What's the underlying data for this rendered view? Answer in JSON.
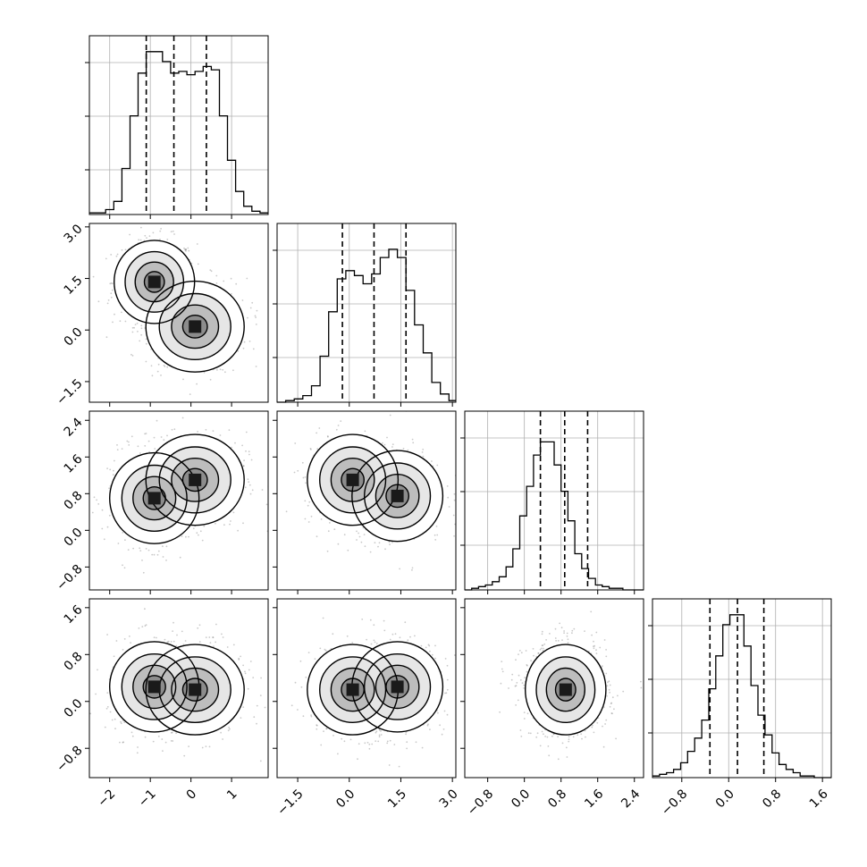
{
  "chart_data": {
    "type": "corner",
    "parameters": 4,
    "axes": [
      {
        "range": [
          -2.5,
          1.9
        ],
        "ticks": [
          -2,
          -1,
          0,
          1
        ],
        "tick_labels": [
          "−2",
          "−1",
          "0",
          "1"
        ]
      },
      {
        "range": [
          -2.1,
          3.1
        ],
        "ticks": [
          -1.5,
          0.0,
          1.5,
          3.0
        ],
        "tick_labels": [
          "−1.5",
          "0.0",
          "1.5",
          "3.0"
        ]
      },
      {
        "range": [
          -1.3,
          2.6
        ],
        "ticks": [
          -0.8,
          0.0,
          0.8,
          1.6,
          2.4
        ],
        "tick_labels": [
          "−0.8",
          "0.0",
          "0.8",
          "1.6",
          "2.4"
        ]
      },
      {
        "range": [
          -1.3,
          1.75
        ],
        "ticks": [
          -0.8,
          0.0,
          0.8,
          1.6
        ],
        "tick_labels": [
          "−0.8",
          "0.0",
          "0.8",
          "1.6"
        ]
      }
    ],
    "quantiles": [
      [
        -1.1,
        -0.42,
        0.38
      ],
      [
        -0.2,
        0.72,
        1.65
      ],
      [
        0.35,
        0.88,
        1.38
      ],
      [
        -0.32,
        0.15,
        0.6
      ]
    ],
    "marginals": [
      {
        "edges_start": -2.5,
        "bin_width": 0.2,
        "ymax": 1.0,
        "counts": [
          0.01,
          0.01,
          0.03,
          0.08,
          0.28,
          0.6,
          0.86,
          0.99,
          0.99,
          0.93,
          0.86,
          0.87,
          0.85,
          0.87,
          0.9,
          0.88,
          0.6,
          0.33,
          0.14,
          0.05,
          0.02,
          0.01
        ]
      },
      {
        "edges_start": -2.1,
        "bin_width": 0.25,
        "ymax": 1.0,
        "counts": [
          0.0,
          0.01,
          0.02,
          0.04,
          0.1,
          0.28,
          0.55,
          0.75,
          0.8,
          0.77,
          0.72,
          0.78,
          0.88,
          0.93,
          0.88,
          0.68,
          0.47,
          0.3,
          0.12,
          0.05,
          0.01
        ]
      },
      {
        "edges_start": -1.3,
        "bin_width": 0.15,
        "ymax": 1.0,
        "counts": [
          0.0,
          0.01,
          0.02,
          0.03,
          0.05,
          0.08,
          0.14,
          0.25,
          0.45,
          0.63,
          0.82,
          0.9,
          0.9,
          0.76,
          0.6,
          0.42,
          0.22,
          0.13,
          0.07,
          0.03,
          0.02,
          0.01,
          0.01,
          0.0,
          0.0,
          0.0
        ]
      },
      {
        "edges_start": -1.3,
        "bin_width": 0.12,
        "ymax": 1.0,
        "counts": [
          0.01,
          0.02,
          0.03,
          0.05,
          0.09,
          0.16,
          0.24,
          0.35,
          0.54,
          0.74,
          0.93,
          0.99,
          0.99,
          0.8,
          0.56,
          0.38,
          0.26,
          0.15,
          0.08,
          0.05,
          0.03,
          0.01,
          0.01,
          0.0,
          0.0,
          0.0
        ]
      }
    ],
    "joint_modes": [
      {
        "pair": [
          0,
          1
        ],
        "centers": [
          [
            -0.9,
            1.4
          ],
          [
            0.1,
            0.1
          ]
        ],
        "sd": [
          [
            0.45,
            0.55
          ],
          [
            0.55,
            0.6
          ]
        ]
      },
      {
        "pair": [
          0,
          2
        ],
        "centers": [
          [
            -0.9,
            0.7
          ],
          [
            0.1,
            1.1
          ]
        ],
        "sd": [
          [
            0.5,
            0.45
          ],
          [
            0.55,
            0.45
          ]
        ]
      },
      {
        "pair": [
          0,
          3
        ],
        "centers": [
          [
            -0.9,
            0.25
          ],
          [
            0.1,
            0.2
          ]
        ],
        "sd": [
          [
            0.5,
            0.35
          ],
          [
            0.55,
            0.35
          ]
        ]
      },
      {
        "pair": [
          1,
          2
        ],
        "centers": [
          [
            0.1,
            1.1
          ],
          [
            1.4,
            0.75
          ]
        ],
        "sd": [
          [
            0.6,
            0.45
          ],
          [
            0.6,
            0.45
          ]
        ]
      },
      {
        "pair": [
          1,
          3
        ],
        "centers": [
          [
            0.1,
            0.2
          ],
          [
            1.4,
            0.25
          ]
        ],
        "sd": [
          [
            0.6,
            0.35
          ],
          [
            0.6,
            0.35
          ]
        ]
      },
      {
        "pair": [
          2,
          3
        ],
        "centers": [
          [
            0.9,
            0.2
          ]
        ],
        "sd": [
          [
            0.4,
            0.35
          ]
        ]
      }
    ]
  }
}
